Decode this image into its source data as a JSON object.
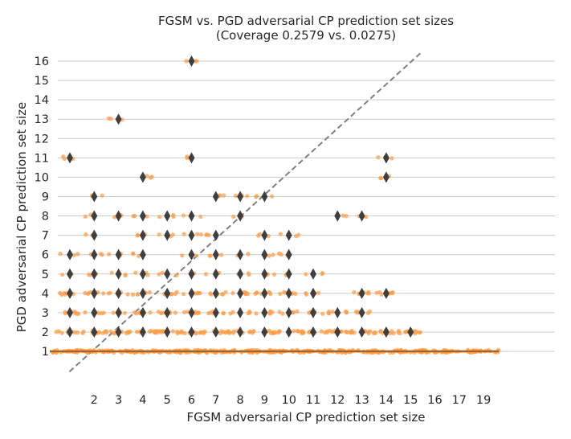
{
  "chart_data": {
    "type": "scatter",
    "title": "FGSM vs. PGD adversarial CP prediction set sizes",
    "subtitle": "(Coverage 0.2579 vs. 0.0275)",
    "xlabel": "FGSM adversarial CP prediction set size",
    "ylabel": "PGD adversarial CP prediction set size",
    "x_categories": [
      "1",
      "2",
      "3",
      "4",
      "5",
      "6",
      "7",
      "8",
      "9",
      "10",
      "11",
      "12",
      "13",
      "14",
      "15",
      "16",
      "17",
      "19"
    ],
    "x_tick_labels": [
      "2",
      "3",
      "4",
      "5",
      "6",
      "7",
      "8",
      "9",
      "10",
      "11",
      "12",
      "13",
      "14",
      "15",
      "16",
      "17",
      "19"
    ],
    "y_ticks": [
      1,
      2,
      3,
      4,
      5,
      6,
      7,
      8,
      9,
      10,
      11,
      12,
      13,
      14,
      15,
      16
    ],
    "ylim": [
      -0.05,
      16.55
    ],
    "grid": "horizontal",
    "reference_line": "y = x",
    "groups": [
      {
        "x": "1",
        "y_values": [
          1,
          2,
          3,
          4,
          5,
          6,
          11
        ],
        "outliers": [
          2,
          3,
          4,
          5,
          6,
          11
        ]
      },
      {
        "x": "2",
        "y_values": [
          1,
          2,
          3,
          4,
          5,
          6,
          7,
          8,
          9
        ],
        "outliers": [
          2,
          3,
          4,
          5,
          6,
          7,
          8,
          9
        ]
      },
      {
        "x": "3",
        "y_values": [
          1,
          2,
          3,
          4,
          5,
          6,
          8,
          13
        ],
        "outliers": [
          2,
          3,
          4,
          5,
          6,
          8,
          13
        ]
      },
      {
        "x": "4",
        "y_values": [
          1,
          2,
          3,
          4,
          5,
          6,
          7,
          8,
          10
        ],
        "outliers": [
          2,
          3,
          4,
          5,
          6,
          7,
          8,
          10
        ]
      },
      {
        "x": "5",
        "y_values": [
          1,
          2,
          3,
          4,
          5,
          7,
          8
        ],
        "outliers": [
          2,
          3,
          4,
          5,
          7,
          8
        ]
      },
      {
        "x": "6",
        "y_values": [
          1,
          2,
          3,
          4,
          5,
          6,
          7,
          8,
          11,
          16
        ],
        "outliers": [
          2,
          3,
          4,
          5,
          6,
          7,
          8,
          11,
          16
        ]
      },
      {
        "x": "7",
        "y_values": [
          1,
          2,
          3,
          4,
          5,
          6,
          7,
          9
        ],
        "outliers": [
          2,
          3,
          4,
          5,
          6,
          7,
          9
        ]
      },
      {
        "x": "8",
        "y_values": [
          1,
          2,
          3,
          4,
          5,
          6,
          8,
          9
        ],
        "outliers": [
          2,
          3,
          4,
          5,
          6,
          8,
          9
        ]
      },
      {
        "x": "9",
        "y_values": [
          1,
          2,
          3,
          4,
          5,
          6,
          7,
          9
        ],
        "outliers": [
          2,
          3,
          4,
          5,
          6,
          7,
          9
        ]
      },
      {
        "x": "10",
        "y_values": [
          1,
          2,
          3,
          4,
          5,
          6,
          7
        ],
        "outliers": [
          2,
          3,
          4,
          5,
          6,
          7
        ]
      },
      {
        "x": "11",
        "y_values": [
          1,
          2,
          3,
          4,
          5
        ],
        "outliers": [
          2,
          3,
          4,
          5
        ]
      },
      {
        "x": "12",
        "y_values": [
          1,
          2,
          3,
          8
        ],
        "outliers": [
          2,
          3,
          8
        ]
      },
      {
        "x": "13",
        "y_values": [
          1,
          2,
          3,
          4,
          8
        ],
        "outliers": [
          2,
          3,
          4,
          8
        ]
      },
      {
        "x": "14",
        "y_values": [
          1,
          2,
          4,
          10,
          11
        ],
        "outliers": [
          2,
          4,
          10,
          11
        ]
      },
      {
        "x": "15",
        "y_values": [
          1,
          2
        ],
        "outliers": [
          2
        ]
      },
      {
        "x": "16",
        "y_values": [
          1
        ],
        "outliers": []
      },
      {
        "x": "17",
        "y_values": [
          1
        ],
        "outliers": []
      },
      {
        "x": "19",
        "y_values": [
          1
        ],
        "outliers": []
      }
    ]
  }
}
